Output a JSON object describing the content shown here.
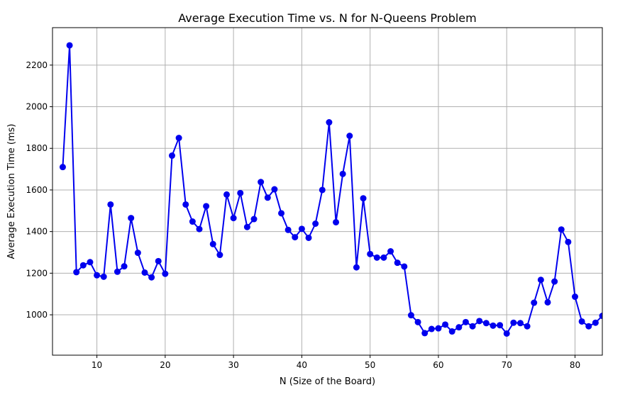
{
  "chart_data": {
    "type": "line",
    "title": "Average Execution Time vs. N for N-Queens Problem",
    "xlabel": "N (Size of the Board)",
    "ylabel": "Average Execution Time (ms)",
    "xlim": [
      3.5,
      84
    ],
    "ylim": [
      806,
      2380
    ],
    "xticks": [
      10,
      20,
      30,
      40,
      50,
      60,
      70,
      80
    ],
    "yticks": [
      1000,
      1200,
      1400,
      1600,
      1800,
      2000,
      2200
    ],
    "grid": true,
    "series": [
      {
        "color": "#0000ee",
        "marker": "circle",
        "x": [
          5,
          6,
          7,
          8,
          9,
          10,
          11,
          12,
          13,
          14,
          15,
          16,
          17,
          18,
          19,
          20,
          21,
          22,
          23,
          24,
          25,
          26,
          27,
          28,
          29,
          30,
          31,
          32,
          33,
          34,
          35,
          36,
          37,
          38,
          39,
          40,
          41,
          42,
          43,
          44,
          45,
          46,
          47,
          48,
          49,
          50,
          51,
          52,
          53,
          54,
          55,
          56,
          57,
          58,
          59,
          60,
          61,
          62,
          63,
          64,
          65,
          66,
          67,
          68,
          69,
          70,
          71,
          72,
          73,
          74,
          75,
          76,
          77,
          78,
          79,
          80,
          81,
          82,
          83,
          84
        ],
        "y": [
          1710,
          2295,
          1205,
          1238,
          1253,
          1190,
          1183,
          1530,
          1207,
          1233,
          1465,
          1298,
          1203,
          1180,
          1258,
          1197,
          1765,
          1850,
          1530,
          1448,
          1412,
          1522,
          1340,
          1288,
          1578,
          1465,
          1585,
          1422,
          1460,
          1638,
          1563,
          1603,
          1488,
          1408,
          1373,
          1413,
          1370,
          1438,
          1600,
          1925,
          1445,
          1677,
          1860,
          1228,
          1560,
          1292,
          1275,
          1275,
          1305,
          1250,
          1232,
          998,
          965,
          912,
          932,
          935,
          953,
          920,
          940,
          965,
          945,
          970,
          960,
          948,
          950,
          910,
          962,
          960,
          945,
          1058,
          1168,
          1060,
          1160,
          1410,
          1350,
          1087,
          968,
          945,
          962,
          995
        ]
      }
    ]
  }
}
